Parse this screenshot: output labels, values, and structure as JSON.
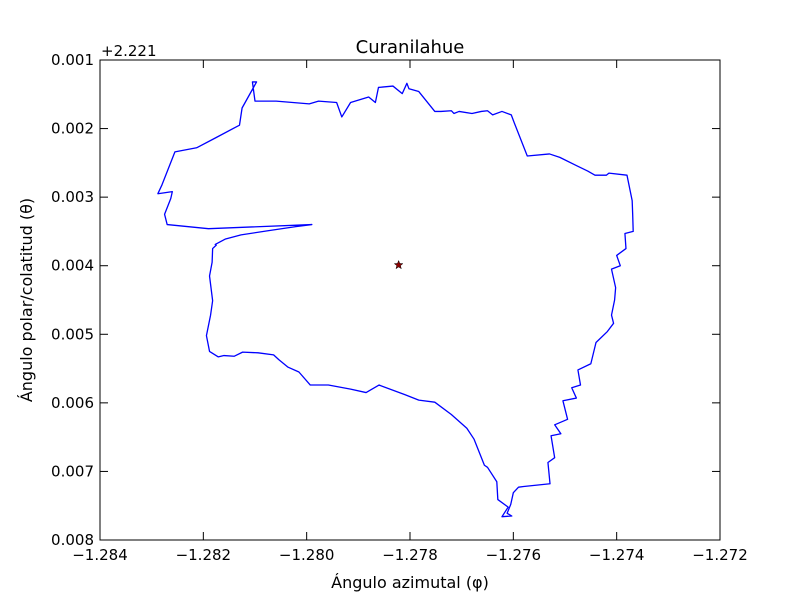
{
  "chart_data": {
    "type": "line",
    "title": "Curanilahue",
    "xlabel": "Ángulo azimutal (φ)",
    "ylabel": "Ángulo polar/colatitud (θ)",
    "y_offset_label": "+2.221",
    "xlim": [
      -1.284,
      -1.272
    ],
    "ylim": [
      0.008,
      0.001
    ],
    "y_inverted": true,
    "grid": false,
    "x_ticks": [
      "−1.284",
      "−1.282",
      "−1.280",
      "−1.278",
      "−1.276",
      "−1.274",
      "−1.272"
    ],
    "x_tick_values": [
      -1.284,
      -1.282,
      -1.28,
      -1.278,
      -1.276,
      -1.274,
      -1.272
    ],
    "y_ticks": [
      "0.001",
      "0.002",
      "0.003",
      "0.004",
      "0.005",
      "0.006",
      "0.007",
      "0.008"
    ],
    "y_tick_values": [
      0.001,
      0.002,
      0.003,
      0.004,
      0.005,
      0.006,
      0.007,
      0.008
    ],
    "outline_color": "#0000ff",
    "center_marker_color": "#8b0000",
    "series": [
      {
        "kind": "boundary",
        "x": [
          -1.28097,
          -1.28105,
          -1.281,
          -1.28059,
          -1.27995,
          -1.27977,
          -1.27942,
          -1.27932,
          -1.27915,
          -1.2788,
          -1.27867,
          -1.27861,
          -1.27833,
          -1.27815,
          -1.27806,
          -1.27802,
          -1.27783,
          -1.27752,
          -1.2774,
          -1.2772,
          -1.27715,
          -1.27705,
          -1.2768,
          -1.27662,
          -1.2765,
          -1.2764,
          -1.27622,
          -1.27604,
          -1.27598,
          -1.27573,
          -1.2753,
          -1.2751,
          -1.27478,
          -1.27456,
          -1.27442,
          -1.2742,
          -1.27415,
          -1.2738,
          -1.2737,
          -1.27369,
          -1.27368,
          -1.27384,
          -1.27382,
          -1.274,
          -1.27393,
          -1.2741,
          -1.27402,
          -1.27404,
          -1.2741,
          -1.27406,
          -1.27418,
          -1.2744,
          -1.2745,
          -1.27475,
          -1.2747,
          -1.27487,
          -1.27478,
          -1.27504,
          -1.27495,
          -1.2752,
          -1.27508,
          -1.27527,
          -1.2752,
          -1.27533,
          -1.27529,
          -1.2758,
          -1.2759,
          -1.276,
          -1.27605,
          -1.27612,
          -1.27603,
          -1.27622,
          -1.2761,
          -1.2763,
          -1.27632,
          -1.2765,
          -1.27656,
          -1.27676,
          -1.2769,
          -1.2772,
          -1.27752,
          -1.27783,
          -1.2781,
          -1.2786,
          -1.27885,
          -1.27915,
          -1.27958,
          -1.27993,
          -1.28015,
          -1.28036,
          -1.28054,
          -1.28064,
          -1.28094,
          -1.28124,
          -1.2814,
          -1.2816,
          -1.28171,
          -1.28188,
          -1.28194,
          -1.28186,
          -1.28182,
          -1.28188,
          -1.28183,
          -1.28182,
          -1.28175,
          -1.28177,
          -1.28157,
          -1.28127,
          -1.28075,
          -1.28021,
          -1.2799,
          -1.2819,
          -1.2827,
          -1.28275,
          -1.28263,
          -1.2826,
          -1.28288,
          -1.2828,
          -1.28255,
          -1.28213,
          -1.28175,
          -1.2813,
          -1.28125,
          -1.28097
        ],
        "y": [
          0.00132,
          0.00132,
          0.0016,
          0.0016,
          0.00164,
          0.0016,
          0.00162,
          0.00183,
          0.00162,
          0.00154,
          0.00162,
          0.0014,
          0.00138,
          0.00149,
          0.00134,
          0.00142,
          0.00146,
          0.00175,
          0.00175,
          0.00174,
          0.00178,
          0.00175,
          0.00178,
          0.00175,
          0.00174,
          0.0018,
          0.00175,
          0.0018,
          0.00192,
          0.0024,
          0.00237,
          0.00242,
          0.00254,
          0.00262,
          0.00268,
          0.00268,
          0.00265,
          0.00268,
          0.00305,
          0.00325,
          0.0035,
          0.00353,
          0.00375,
          0.00385,
          0.004,
          0.00405,
          0.00432,
          0.0045,
          0.00472,
          0.00484,
          0.00496,
          0.00512,
          0.00543,
          0.00552,
          0.00574,
          0.00578,
          0.00593,
          0.00597,
          0.00624,
          0.00632,
          0.00645,
          0.00648,
          0.0068,
          0.00687,
          0.00718,
          0.00722,
          0.00723,
          0.00731,
          0.00748,
          0.00761,
          0.00765,
          0.00766,
          0.00752,
          0.00741,
          0.00715,
          0.00694,
          0.00691,
          0.00653,
          0.00637,
          0.00617,
          0.00599,
          0.00596,
          0.00588,
          0.00574,
          0.00585,
          0.0058,
          0.00574,
          0.00574,
          0.00555,
          0.00548,
          0.00537,
          0.0053,
          0.00527,
          0.00526,
          0.00532,
          0.00531,
          0.00533,
          0.00525,
          0.00502,
          0.00472,
          0.00451,
          0.00415,
          0.00395,
          0.00375,
          0.0037,
          0.00369,
          0.00361,
          0.00355,
          0.00349,
          0.00343,
          0.0034,
          0.00346,
          0.0034,
          0.00325,
          0.00302,
          0.00292,
          0.00295,
          0.00282,
          0.00234,
          0.00228,
          0.00213,
          0.00195,
          0.0017,
          0.00132
        ]
      }
    ],
    "center_point": {
      "x": -1.27822,
      "y": 0.00399
    }
  }
}
